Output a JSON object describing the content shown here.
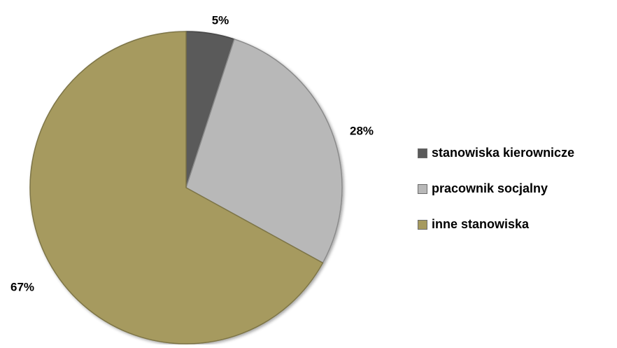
{
  "chart_data": {
    "type": "pie",
    "title": "",
    "categories": [
      "stanowiska kierownicze",
      "pracownik socjalny",
      "inne stanowiska"
    ],
    "values": [
      5,
      28,
      67
    ],
    "value_labels": [
      "5%",
      "28%",
      "67%"
    ],
    "colors": [
      "#5a5a5a",
      "#b8b8b8",
      "#a69a5e"
    ],
    "start_angle_deg": 0,
    "direction": "clockwise",
    "legend_position": "right"
  }
}
